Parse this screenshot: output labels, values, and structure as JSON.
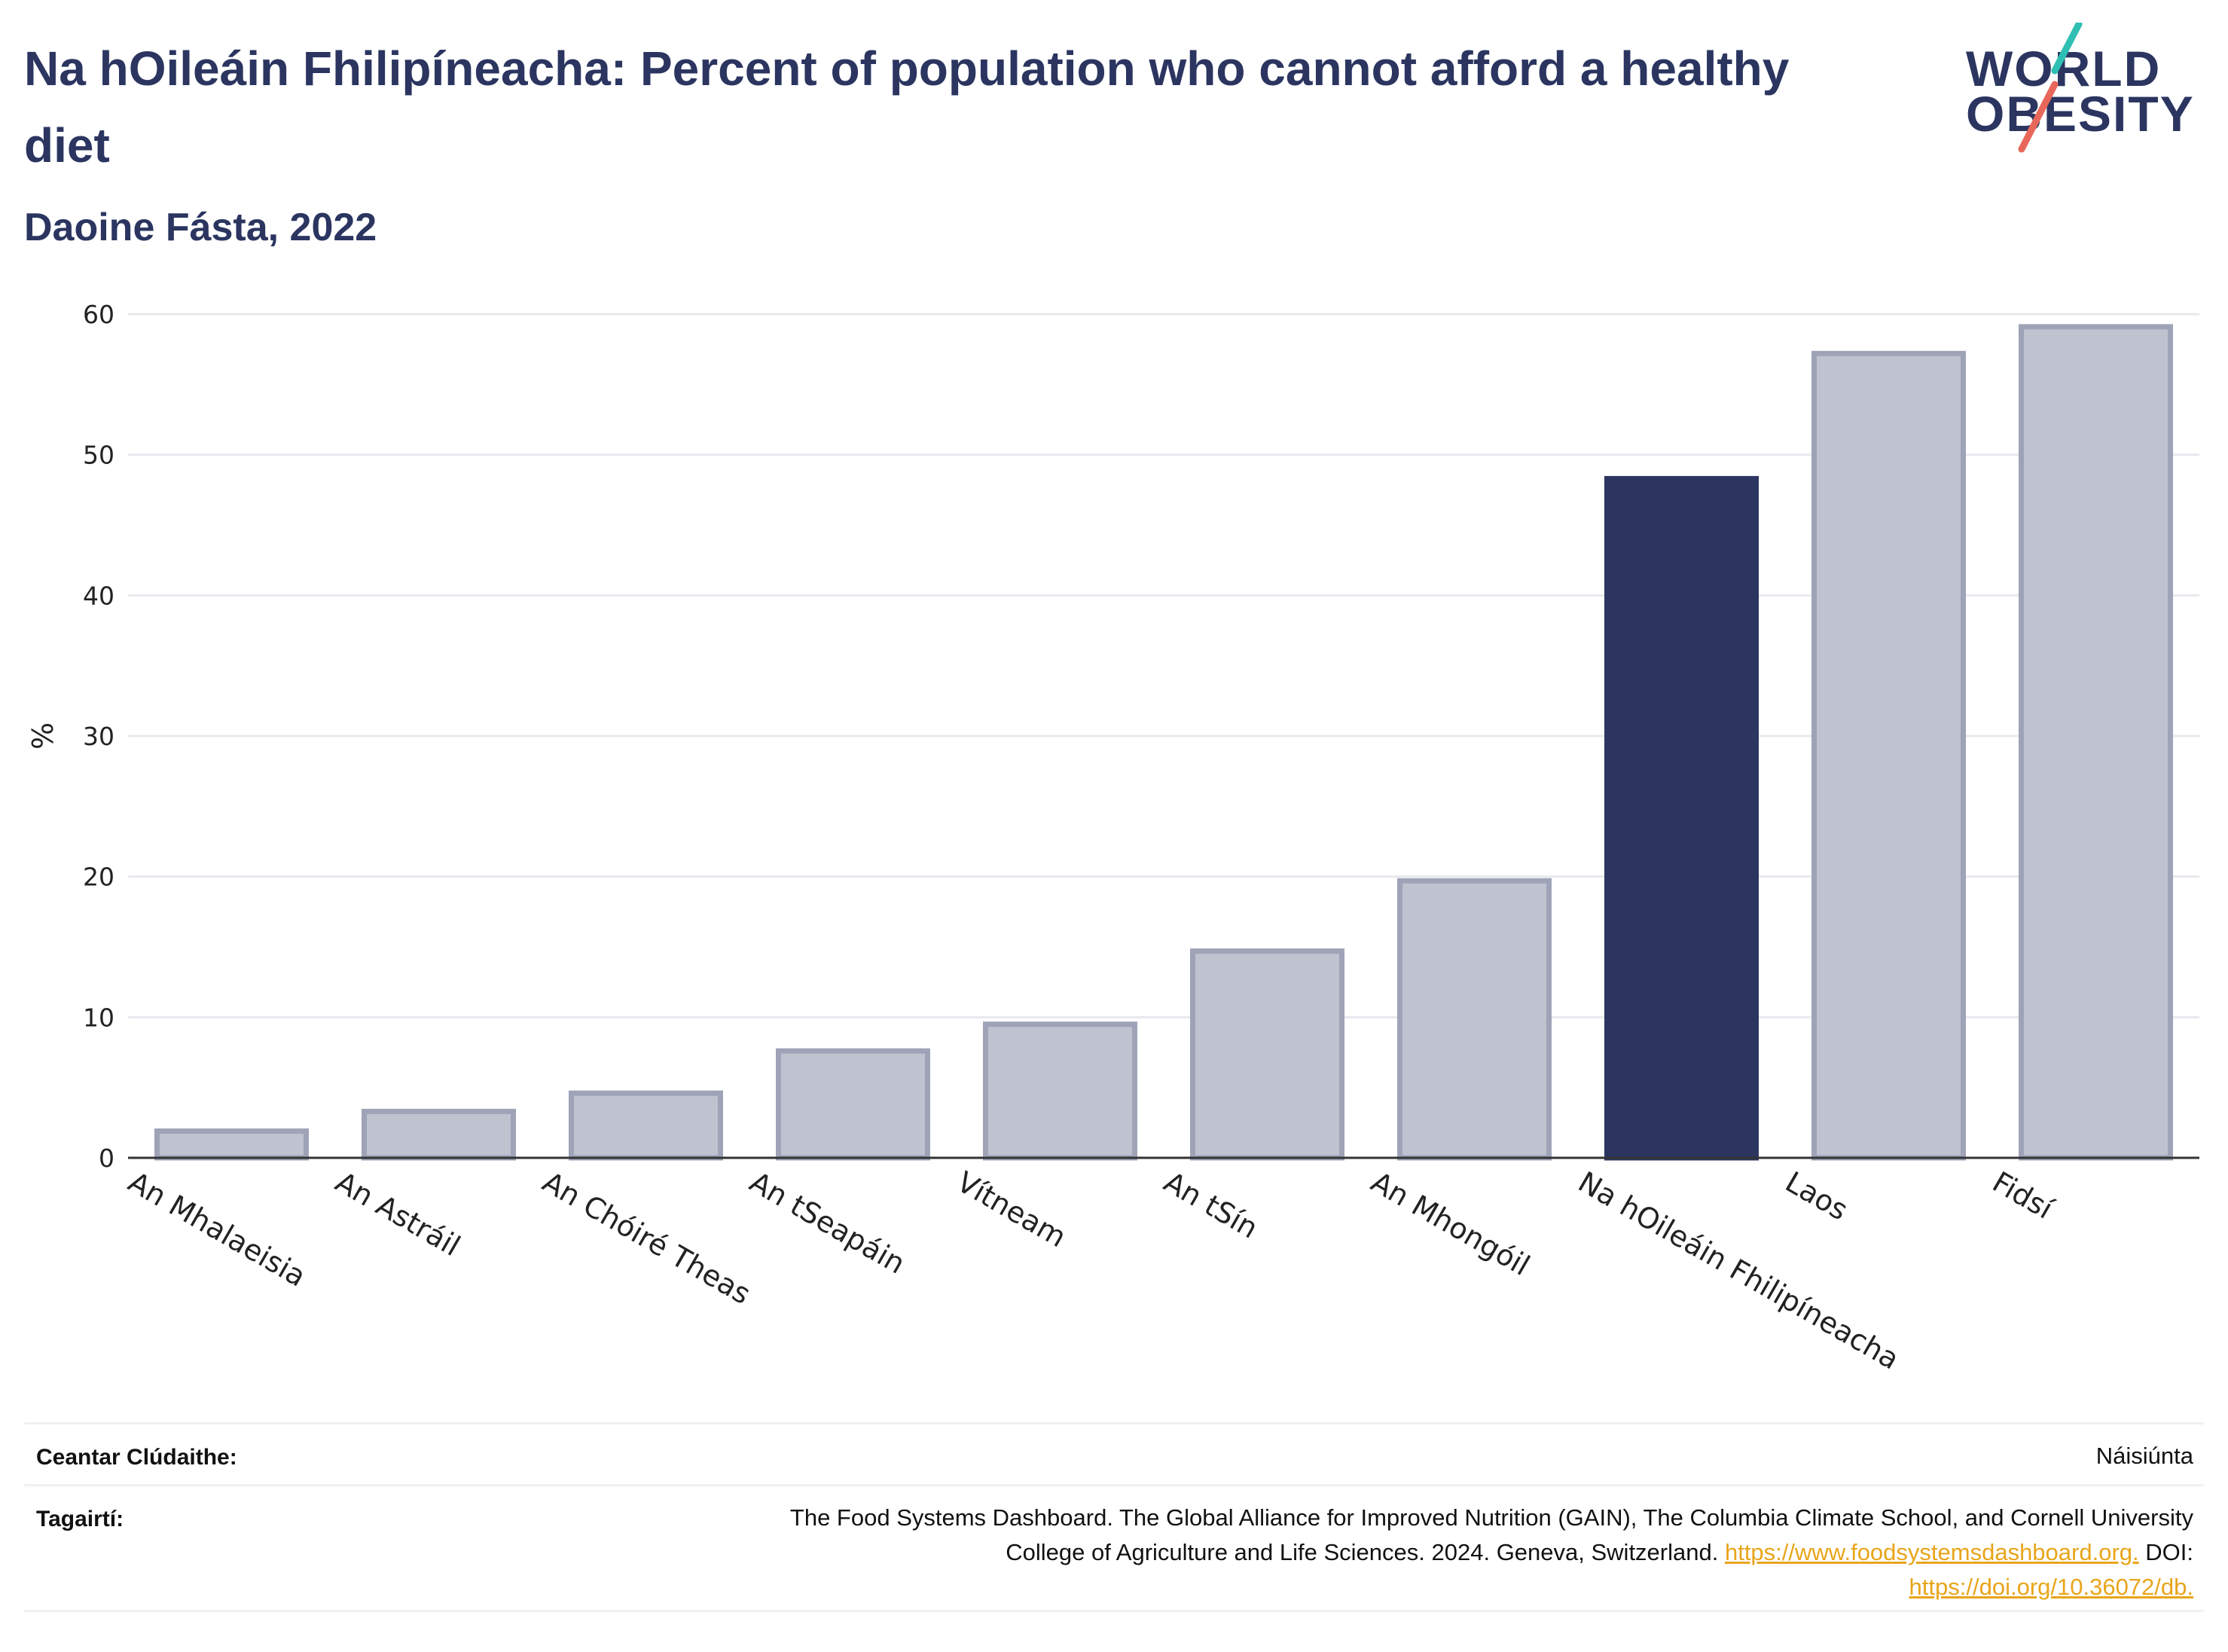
{
  "header": {
    "title": "Na hOileáin Fhilipíneacha: Percent of population who cannot afford a healthy diet",
    "subtitle": "Daoine Fásta, 2022"
  },
  "logo": {
    "line1": "WORLD",
    "line2": "OBESITY",
    "slash_colors": [
      "#2fbfb3",
      "#e8675a"
    ]
  },
  "colors": {
    "highlight": "#2b3560",
    "bar_fill": "#bfc2cf",
    "bar_stroke": "#9ea3b8",
    "grid": "#e8e9ee",
    "axis": "#333333",
    "link": "#e8a51b"
  },
  "chart_data": {
    "type": "bar",
    "categories": [
      "An Mhalaeisia",
      "An Astráil",
      "An Chóiré Theas",
      "An tSeapáin",
      "Vítneam",
      "An tSín",
      "An Mhongóil",
      "Na hOileáin Fhilipíneacha",
      "Laos",
      "Fidsí"
    ],
    "values": [
      1.9,
      3.3,
      4.6,
      7.6,
      9.5,
      14.7,
      19.7,
      48.3,
      57.2,
      59.1
    ],
    "highlight_index": 7,
    "ylabel": "%",
    "xlabel": "",
    "ylim": [
      0,
      60
    ],
    "yticks": [
      0,
      10,
      20,
      30,
      40,
      50,
      60
    ],
    "grid": true
  },
  "footer": {
    "coverage_label": "Ceantar Clúdaithe:",
    "coverage_value": "Náisiúnta",
    "refs_label": "Tagairtí:",
    "refs_line1": "The Food Systems Dashboard. The Global Alliance for Improved Nutrition (GAIN), The Columbia Climate School, and Cornell University",
    "refs_line2_pre": "College of Agriculture and Life Sciences. 2024. Geneva, Switzerland.",
    "refs_link1": "https://www.foodsystemsdashboard.org.",
    "refs_doi_label": "DOI:",
    "refs_link2": "https://doi.org/10.36072/db."
  }
}
